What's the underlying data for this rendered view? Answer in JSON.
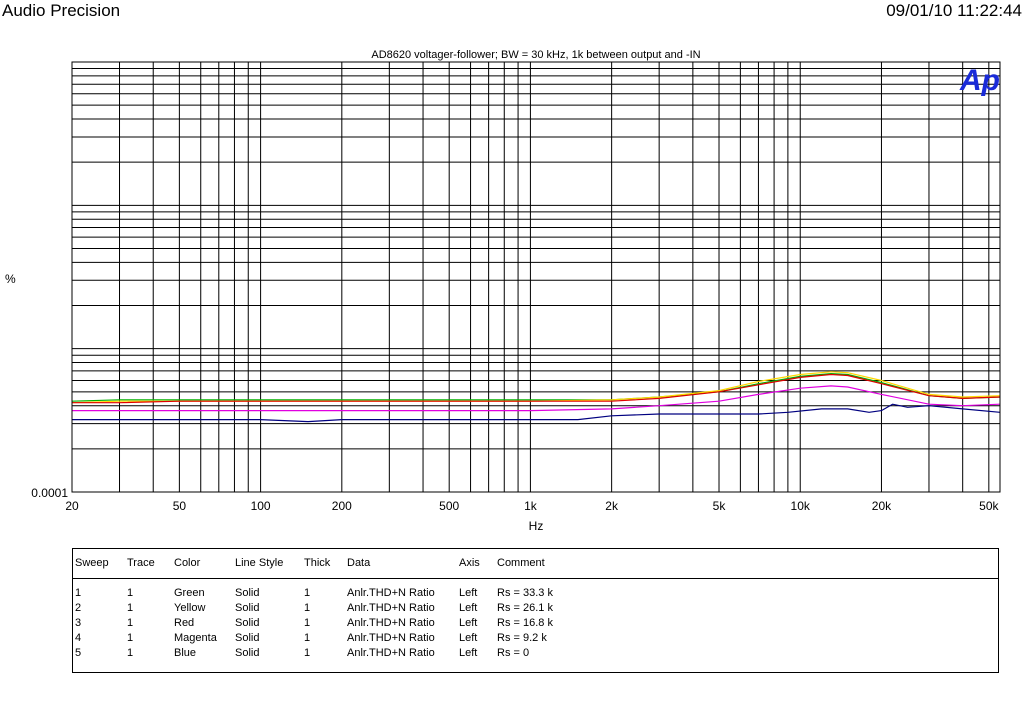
{
  "header": {
    "app_name": "Audio Precision",
    "timestamp": "09/01/10 11:22:44"
  },
  "colors": {
    "background": "#ffffff",
    "grid": "#000000",
    "logo": "#1a2bd8"
  },
  "logo": {
    "text": "Ap",
    "icon": "audio-precision-logo-icon"
  },
  "chart_data": {
    "type": "line",
    "title": "AD8620 voltager-follower; BW = 30 kHz, 1k between output and -IN",
    "xlabel": "Hz",
    "ylabel": "%",
    "x_scale": "log",
    "y_scale": "log",
    "xlim": [
      20,
      55000
    ],
    "ylim": [
      0.0001,
      0.1
    ],
    "x_ticks": [
      20,
      50,
      100,
      200,
      500,
      1000,
      2000,
      5000,
      10000,
      20000,
      50000
    ],
    "x_tick_labels": [
      "20",
      "50",
      "100",
      "200",
      "500",
      "1k",
      "2k",
      "5k",
      "10k",
      "20k",
      "50k"
    ],
    "y_tick_labels": [
      "0.0001"
    ],
    "grid": true,
    "series": [
      {
        "name": "Rs = 33.3 k",
        "color": "#00b000",
        "x": [
          20,
          30,
          50,
          100,
          200,
          500,
          1000,
          2000,
          3000,
          5000,
          7000,
          10000,
          13000,
          15000,
          20000,
          30000,
          40000,
          55000
        ],
        "y": [
          0.00043,
          0.00044,
          0.00044,
          0.00044,
          0.00044,
          0.00044,
          0.00044,
          0.00044,
          0.00046,
          0.0005,
          0.00057,
          0.00064,
          0.00067,
          0.00066,
          0.00058,
          0.00047,
          0.00045,
          0.00046
        ]
      },
      {
        "name": "Rs = 26.1 k",
        "color": "#ffd800",
        "x": [
          20,
          30,
          50,
          100,
          200,
          500,
          1000,
          2000,
          3000,
          5000,
          7000,
          10000,
          13000,
          15000,
          20000,
          30000,
          40000,
          55000
        ],
        "y": [
          0.00042,
          0.00043,
          0.00043,
          0.00043,
          0.00043,
          0.00043,
          0.00043,
          0.00044,
          0.00046,
          0.00051,
          0.00059,
          0.00066,
          0.00069,
          0.00068,
          0.0006,
          0.00048,
          0.00046,
          0.00047
        ]
      },
      {
        "name": "Rs = 16.8 k",
        "color": "#e00000",
        "x": [
          20,
          30,
          50,
          100,
          200,
          500,
          1000,
          2000,
          3000,
          5000,
          7000,
          10000,
          13000,
          15000,
          20000,
          30000,
          40000,
          55000
        ],
        "y": [
          0.00042,
          0.00042,
          0.00043,
          0.00043,
          0.00043,
          0.00043,
          0.00043,
          0.00043,
          0.00045,
          0.0005,
          0.00056,
          0.00063,
          0.00066,
          0.00065,
          0.00057,
          0.00047,
          0.00045,
          0.00046
        ]
      },
      {
        "name": "Rs = 9.2 k",
        "color": "#e000e0",
        "x": [
          20,
          30,
          50,
          100,
          200,
          500,
          1000,
          2000,
          3000,
          5000,
          7000,
          10000,
          13000,
          15000,
          20000,
          30000,
          40000,
          55000
        ],
        "y": [
          0.00037,
          0.00037,
          0.00037,
          0.00037,
          0.00037,
          0.00037,
          0.00037,
          0.00038,
          0.0004,
          0.00043,
          0.00048,
          0.00053,
          0.00055,
          0.00054,
          0.00048,
          0.00041,
          0.0004,
          0.00041
        ]
      },
      {
        "name": "Rs = 0",
        "color": "#000080",
        "x": [
          20,
          30,
          50,
          100,
          150,
          200,
          300,
          500,
          700,
          1000,
          1500,
          2000,
          3000,
          5000,
          7000,
          9000,
          12000,
          15000,
          18000,
          20000,
          22000,
          25000,
          30000,
          40000,
          55000
        ],
        "y": [
          0.00032,
          0.00032,
          0.00032,
          0.00032,
          0.00031,
          0.00032,
          0.00032,
          0.00032,
          0.00032,
          0.00032,
          0.00032,
          0.00034,
          0.00035,
          0.00035,
          0.00035,
          0.00036,
          0.00038,
          0.00038,
          0.00036,
          0.00037,
          0.00041,
          0.00039,
          0.0004,
          0.00038,
          0.00036
        ]
      }
    ]
  },
  "legend": {
    "headers": [
      "Sweep",
      "Trace",
      "Color",
      "Line Style",
      "Thick",
      "Data",
      "Axis",
      "Comment"
    ],
    "rows": [
      [
        "1",
        "1",
        "Green",
        "Solid",
        "1",
        "Anlr.THD+N Ratio",
        "Left",
        "Rs = 33.3 k"
      ],
      [
        "2",
        "1",
        "Yellow",
        "Solid",
        "1",
        "Anlr.THD+N Ratio",
        "Left",
        "Rs = 26.1 k"
      ],
      [
        "3",
        "1",
        "Red",
        "Solid",
        "1",
        "Anlr.THD+N Ratio",
        "Left",
        "Rs = 16.8 k"
      ],
      [
        "4",
        "1",
        "Magenta",
        "Solid",
        "1",
        "Anlr.THD+N Ratio",
        "Left",
        "Rs = 9.2 k"
      ],
      [
        "5",
        "1",
        "Blue",
        "Solid",
        "1",
        "Anlr.THD+N Ratio",
        "Left",
        "Rs = 0"
      ]
    ]
  }
}
